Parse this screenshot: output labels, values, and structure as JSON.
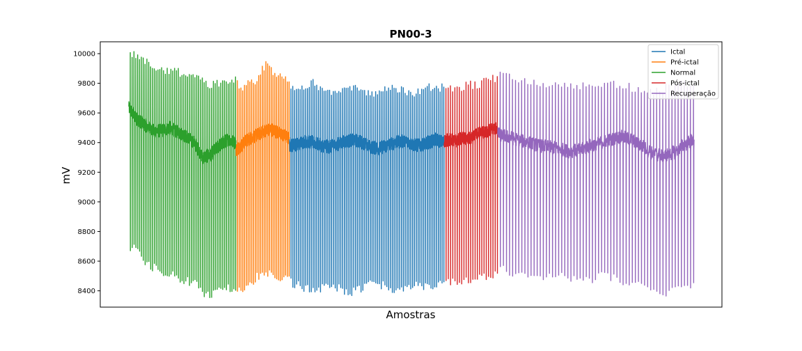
{
  "chart_data": {
    "type": "line",
    "title": "PN00-3",
    "xlabel": "Amostras",
    "ylabel": "mV",
    "ylim": [
      8290,
      10080
    ],
    "yticks": [
      8400,
      8600,
      8800,
      9000,
      9200,
      9400,
      9600,
      9800,
      10000
    ],
    "xticks_visible": false,
    "grid": false,
    "legend": {
      "placement": "top-right"
    },
    "series": [
      {
        "name": "Ictal",
        "color": "#1f77b4",
        "sample_range": [
          2700,
          5300
        ],
        "baseline": [
          9380,
          9390,
          9410,
          9400,
          9380,
          9370,
          9390,
          9410,
          9420,
          9400,
          9370,
          9360,
          9380,
          9400,
          9410,
          9390,
          9380,
          9400,
          9420,
          9400
        ],
        "beat_count": 84,
        "beat_peaks": [
          9780,
          9750,
          9790,
          9800,
          9760,
          9730,
          9740,
          9780,
          9770,
          9740,
          9720,
          9740,
          9750,
          9770,
          9760,
          9740,
          9730,
          9750,
          9770,
          9760,
          9780
        ],
        "beat_troughs": [
          8460,
          8440,
          8420,
          8400,
          8420,
          8450,
          8430,
          8400,
          8390,
          8410,
          8440,
          8450,
          8440,
          8420,
          8410,
          8430,
          8450,
          8440,
          8430,
          8450,
          8460
        ]
      },
      {
        "name": "Pré-ictal",
        "color": "#ff7f0e",
        "sample_range": [
          1800,
          2700
        ],
        "baseline": [
          9350,
          9380,
          9420,
          9440,
          9460,
          9480,
          9490,
          9470,
          9450,
          9430
        ],
        "beat_count": 30,
        "beat_peaks": [
          9800,
          9760,
          9840,
          9800,
          9860,
          9940,
          9880,
          9860,
          9840,
          9820
        ],
        "beat_troughs": [
          8420,
          8420,
          8430,
          8480,
          8510,
          8530,
          8520,
          8500,
          8480,
          8470
        ]
      },
      {
        "name": "Normal",
        "color": "#2ca02c",
        "sample_range": [
          0,
          1800
        ],
        "baseline": [
          9640,
          9560,
          9520,
          9480,
          9480,
          9500,
          9470,
          9440,
          9400,
          9300,
          9320,
          9380,
          9420,
          9400
        ],
        "beat_count": 58,
        "beat_peaks": [
          10000,
          9980,
          9950,
          9900,
          9880,
          9890,
          9870,
          9860,
          9850,
          9800,
          9780,
          9800,
          9800,
          9820
        ],
        "beat_troughs": [
          8680,
          8700,
          8580,
          8560,
          8530,
          8510,
          8490,
          8470,
          8450,
          8380,
          8370,
          8420,
          8420,
          8430
        ]
      },
      {
        "name": "Pós-ictal",
        "color": "#d62728",
        "sample_range": [
          5300,
          6200
        ],
        "baseline": [
          9410,
          9420,
          9410,
          9430,
          9420,
          9440,
          9460,
          9470,
          9490,
          9500
        ],
        "beat_count": 24,
        "beat_peaks": [
          9780,
          9770,
          9760,
          9780,
          9790,
          9780,
          9800,
          9820,
          9830,
          9840
        ],
        "beat_troughs": [
          8470,
          8460,
          8450,
          8460,
          8470,
          8480,
          8490,
          8500,
          8510,
          8520
        ]
      },
      {
        "name": "Recuperação",
        "color": "#9467bd",
        "sample_range": [
          6200,
          9500
        ],
        "baseline": [
          9460,
          9440,
          9420,
          9400,
          9380,
          9370,
          9360,
          9340,
          9350,
          9380,
          9400,
          9420,
          9440,
          9420,
          9380,
          9330,
          9310,
          9330,
          9380,
          9420
        ],
        "beat_count": 64,
        "beat_peaks": [
          9860,
          9840,
          9820,
          9810,
          9800,
          9790,
          9780,
          9790,
          9780,
          9770,
          9780,
          9800,
          9790,
          9760,
          9740,
          9730,
          9760,
          9780,
          9800,
          9810
        ],
        "beat_troughs": [
          8560,
          8520,
          8500,
          8500,
          8490,
          8490,
          8500,
          8490,
          8480,
          8480,
          8500,
          8490,
          8470,
          8450,
          8420,
          8390,
          8380,
          8400,
          8430,
          8460
        ]
      }
    ],
    "draw_order": [
      "Normal",
      "Pré-ictal",
      "Ictal",
      "Pós-ictal",
      "Recuperação"
    ]
  }
}
